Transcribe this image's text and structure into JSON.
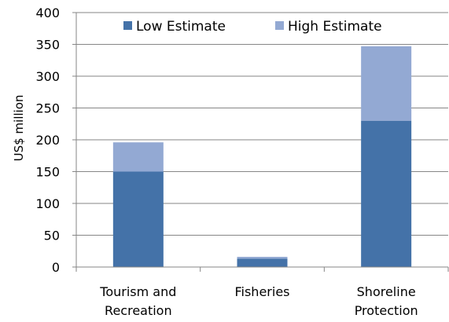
{
  "chart_data": {
    "type": "bar",
    "stacked": true,
    "categories": [
      "Tourism and Recreation",
      "Fisheries",
      "Shoreline Protection"
    ],
    "category_lines": [
      [
        "Tourism and",
        "Recreation"
      ],
      [
        "Fisheries"
      ],
      [
        "Shoreline",
        "Protection"
      ]
    ],
    "series": [
      {
        "name": "Low Estimate",
        "values": [
          150,
          13,
          230
        ],
        "color": "#4472A8"
      },
      {
        "name": "High Estimate",
        "values": [
          46,
          3,
          117
        ],
        "color": "#93A9D3"
      }
    ],
    "stack_totals": [
      196,
      16,
      347
    ],
    "title": "",
    "xlabel": "",
    "ylabel": "US$ million",
    "ylim": [
      0,
      400
    ],
    "yticks": [
      0,
      50,
      100,
      150,
      200,
      250,
      300,
      350,
      400
    ],
    "grid": true,
    "legend_position": "top-inside"
  }
}
